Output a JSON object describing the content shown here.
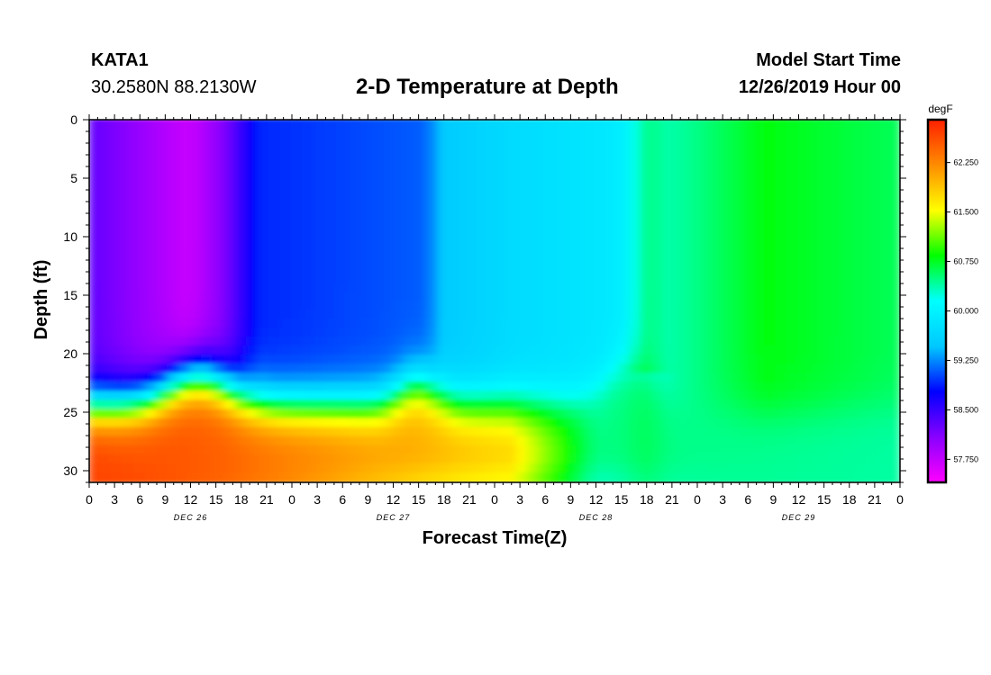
{
  "header": {
    "station": "KATA1",
    "coords": "30.2580N 88.2130W",
    "title": "2-D Temperature at Depth",
    "model_start_label": "Model Start Time",
    "model_start_value": "12/26/2019 Hour 00"
  },
  "chart_data": {
    "type": "heatmap",
    "title": "2-D Temperature at Depth",
    "xlabel": "Forecast Time(Z)",
    "ylabel": "Depth (ft)",
    "x_hours_range": [
      0,
      96
    ],
    "x_tick_step_hours": 3,
    "x_tick_labels": [
      "0",
      "3",
      "6",
      "9",
      "12",
      "15",
      "18",
      "21",
      "0",
      "3",
      "6",
      "9",
      "12",
      "15",
      "18",
      "21",
      "0",
      "3",
      "6",
      "9",
      "12",
      "15",
      "18",
      "21",
      "0",
      "3",
      "6",
      "9",
      "12",
      "15",
      "18",
      "21",
      "0"
    ],
    "day_labels": [
      {
        "label": "DEC 26",
        "hour": 12
      },
      {
        "label": "DEC 27",
        "hour": 36
      },
      {
        "label": "DEC 28",
        "hour": 60
      },
      {
        "label": "DEC 29",
        "hour": 84
      }
    ],
    "ylim": [
      0,
      31
    ],
    "y_ticks": [
      "0",
      "5",
      "10",
      "15",
      "20",
      "25",
      "30"
    ],
    "colorbar": {
      "unit": "degF",
      "min": 57.4,
      "max": 62.9,
      "ticks": [
        "57.750",
        "58.500",
        "59.250",
        "60.000",
        "60.750",
        "61.500",
        "62.250"
      ],
      "colors": [
        "#ff00ff",
        "#8800ff",
        "#0000ff",
        "#00c8ff",
        "#00ffff",
        "#00ff00",
        "#ffff00",
        "#ff8c00",
        "#ff2000"
      ]
    },
    "surface_temperature_profile": [
      {
        "hour": 0,
        "degF": 58.3
      },
      {
        "hour": 12,
        "degF": 57.7
      },
      {
        "hour": 16,
        "degF": 58.1
      },
      {
        "hour": 20,
        "degF": 58.9
      },
      {
        "hour": 40,
        "degF": 59.1
      },
      {
        "hour": 42,
        "degF": 59.5
      },
      {
        "hour": 50,
        "degF": 59.7
      },
      {
        "hour": 64,
        "degF": 59.9
      },
      {
        "hour": 66,
        "degF": 60.1
      },
      {
        "hour": 70,
        "degF": 60.4
      },
      {
        "hour": 80,
        "degF": 60.8
      },
      {
        "hour": 96,
        "degF": 60.6
      }
    ],
    "bottom_temperature_profile": [
      {
        "hour": 0,
        "degF": 62.7
      },
      {
        "hour": 16,
        "degF": 62.5
      },
      {
        "hour": 30,
        "degF": 62.2
      },
      {
        "hour": 50,
        "degF": 61.8
      },
      {
        "hour": 57,
        "degF": 60.9
      },
      {
        "hour": 60,
        "degF": 60.5
      },
      {
        "hour": 96,
        "degF": 60.4
      }
    ]
  }
}
